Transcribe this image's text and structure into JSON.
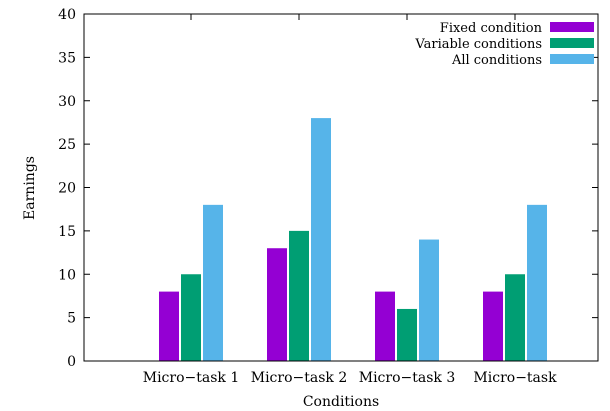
{
  "chart_data": {
    "type": "bar",
    "categories": [
      "Micro−task 1",
      "Micro−task 2",
      "Micro−task 3",
      "Micro−task"
    ],
    "series": [
      {
        "name": "Fixed condition",
        "values": [
          8,
          13,
          8,
          8
        ],
        "color": "#9400d3"
      },
      {
        "name": "Variable conditions",
        "values": [
          10,
          15,
          6,
          10
        ],
        "color": "#009e73"
      },
      {
        "name": "All conditions",
        "values": [
          18,
          28,
          14,
          18
        ],
        "color": "#56b4e9"
      }
    ],
    "xlabel": "Conditions",
    "ylabel": "Earnings",
    "ylim": [
      0,
      40
    ],
    "yticks": [
      0,
      5,
      10,
      15,
      20,
      25,
      30,
      35,
      40
    ],
    "legend_position": "top-right",
    "grid": false
  }
}
